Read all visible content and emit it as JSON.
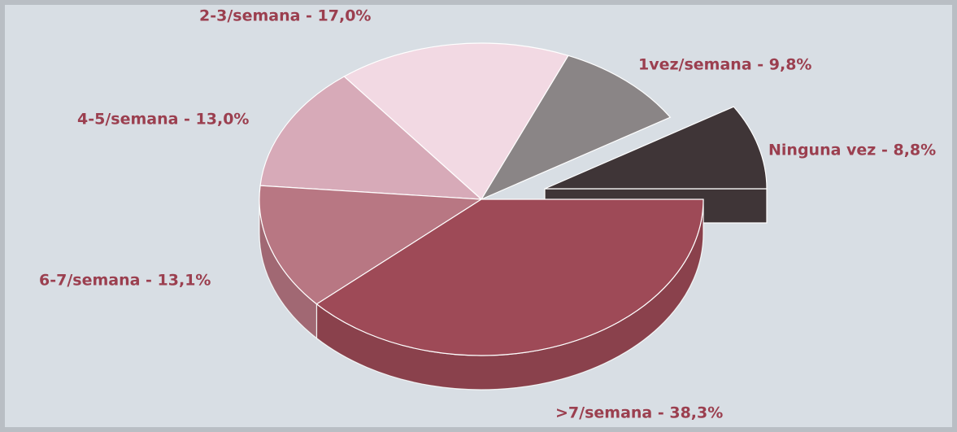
{
  "chart_data": {
    "type": "pie",
    "values": [
      8.8,
      9.8,
      17.0,
      13.0,
      13.1,
      38.3
    ],
    "value_labels": [
      "Ninguna vez - 8,8%",
      "1vez/semana - 9,8%",
      "2-3/semana - 17,0%",
      "4-5/semana - 13,0%",
      "6-7/semana - 13,1%",
      ">7/semana - 38,3%"
    ],
    "colors": [
      "#3f3537",
      "#8a8586",
      "#f2d9e3",
      "#d7aab8",
      "#b87783",
      "#9e4a57"
    ]
  }
}
